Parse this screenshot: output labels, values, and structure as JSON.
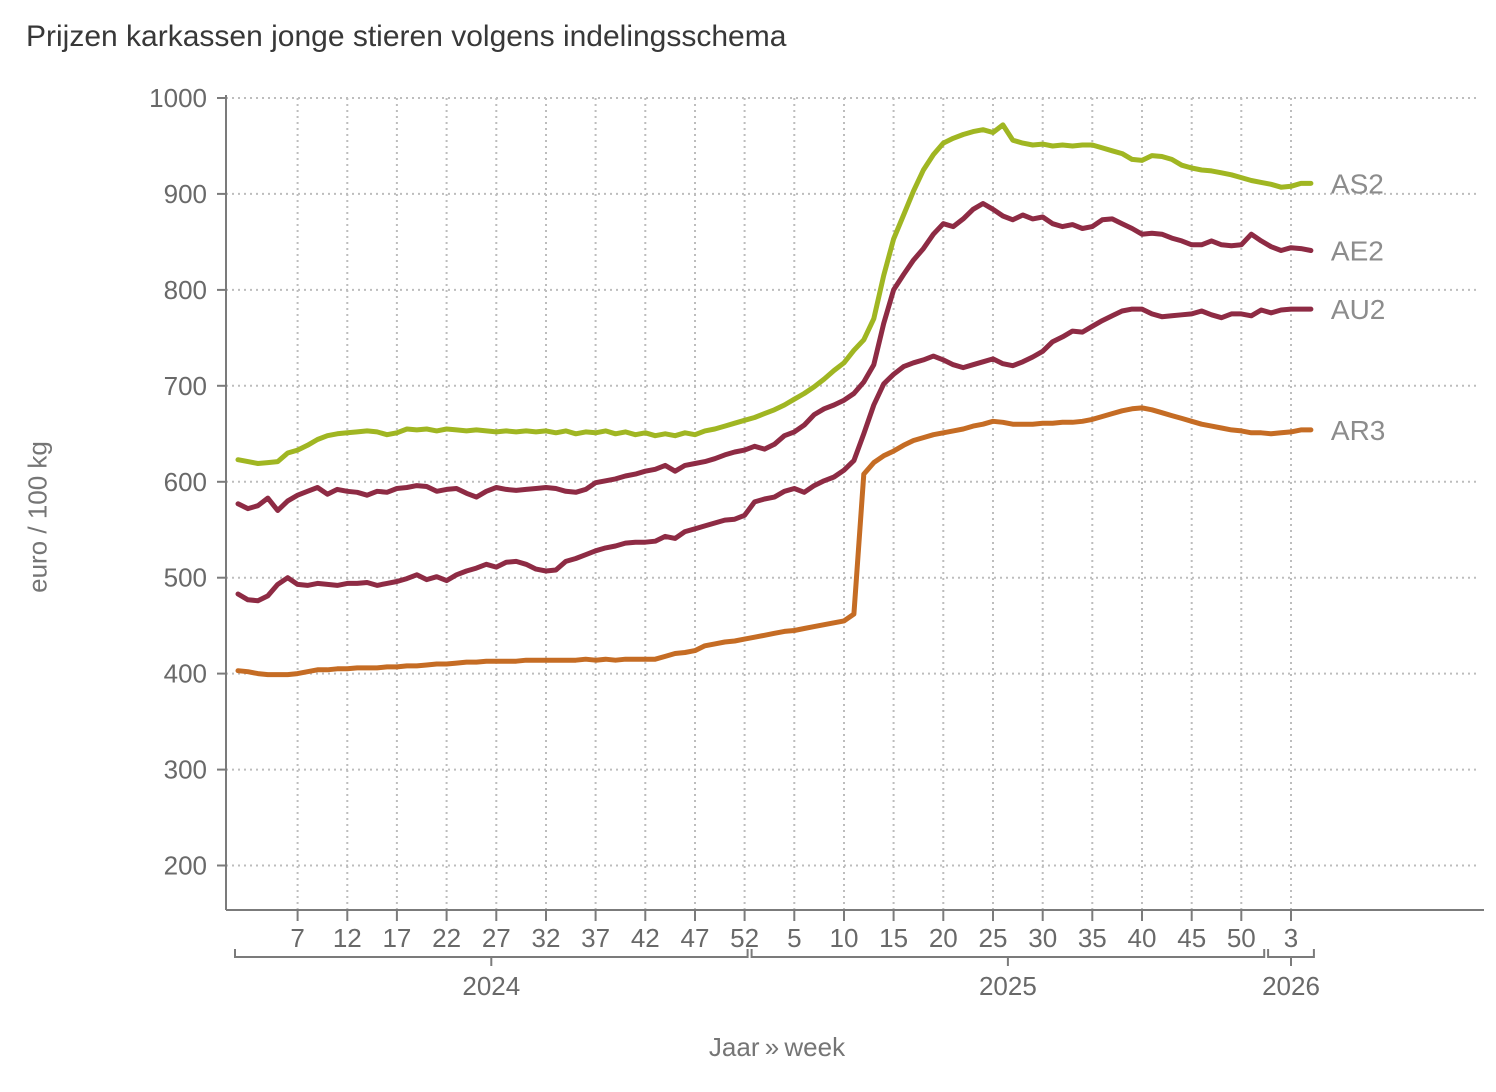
{
  "chart_data": {
    "type": "line",
    "title": "Prijzen karkassen jonge stieren volgens indelingsschema",
    "ylabel": "euro / 100 kg",
    "xlabel": "Jaar » week",
    "ylim": [
      150,
      1010
    ],
    "y_ticks": [
      1000,
      900,
      800,
      700,
      600,
      500,
      400,
      300,
      200
    ],
    "grid": true,
    "legend_position": "right-of-line-ends",
    "x": {
      "unit": "week",
      "years": [
        {
          "year": "2024",
          "weeks": 52,
          "tick_weeks": [
            7,
            12,
            17,
            22,
            27,
            32,
            37,
            42,
            47,
            52
          ]
        },
        {
          "year": "2025",
          "weeks": 52,
          "tick_weeks": [
            5,
            10,
            15,
            20,
            25,
            30,
            35,
            40,
            45,
            50
          ]
        },
        {
          "year": "2026",
          "weeks": 5,
          "tick_weeks": [
            3
          ]
        }
      ]
    },
    "series": [
      {
        "name": "AS2",
        "color": "#a0b622",
        "values": [
          623,
          621,
          619,
          620,
          621,
          630,
          633,
          638,
          644,
          648,
          650,
          651,
          652,
          653,
          652,
          649,
          651,
          655,
          654,
          655,
          653,
          655,
          654,
          653,
          654,
          653,
          652,
          653,
          652,
          653,
          652,
          653,
          651,
          653,
          650,
          652,
          651,
          653,
          650,
          652,
          649,
          651,
          648,
          650,
          648,
          651,
          649,
          653,
          655,
          658,
          661,
          664,
          667,
          671,
          675,
          680,
          686,
          692,
          699,
          707,
          716,
          724,
          737,
          748,
          770,
          815,
          853,
          878,
          903,
          925,
          941,
          953,
          958,
          962,
          965,
          967,
          964,
          972,
          956,
          953,
          951,
          952,
          950,
          951,
          950,
          951,
          951,
          948,
          945,
          942,
          936,
          935,
          940,
          939,
          936,
          930,
          927,
          925,
          924,
          922,
          920,
          917,
          914,
          912,
          910,
          907,
          908,
          911,
          911
        ]
      },
      {
        "name": "AE2",
        "color": "#8e2b44",
        "values": [
          577,
          572,
          575,
          583,
          570,
          580,
          586,
          590,
          594,
          587,
          592,
          590,
          589,
          586,
          590,
          589,
          593,
          594,
          596,
          595,
          590,
          592,
          593,
          588,
          584,
          590,
          594,
          592,
          591,
          592,
          593,
          594,
          593,
          590,
          589,
          592,
          599,
          601,
          603,
          606,
          608,
          611,
          613,
          617,
          611,
          617,
          619,
          621,
          624,
          628,
          631,
          633,
          637,
          634,
          639,
          648,
          652,
          659,
          670,
          676,
          680,
          685,
          692,
          704,
          722,
          765,
          800,
          816,
          831,
          843,
          858,
          869,
          866,
          874,
          884,
          890,
          884,
          877,
          873,
          878,
          874,
          876,
          869,
          866,
          868,
          864,
          866,
          873,
          874,
          869,
          864,
          858,
          859,
          858,
          854,
          851,
          847,
          847,
          851,
          847,
          846,
          847,
          858,
          851,
          845,
          841,
          844,
          843,
          841
        ]
      },
      {
        "name": "AU2",
        "color": "#8e2b44",
        "values": [
          483,
          477,
          476,
          481,
          493,
          500,
          493,
          492,
          494,
          493,
          492,
          494,
          494,
          495,
          492,
          494,
          496,
          499,
          503,
          498,
          501,
          497,
          503,
          507,
          510,
          514,
          511,
          516,
          517,
          514,
          509,
          507,
          508,
          517,
          520,
          524,
          528,
          531,
          533,
          536,
          537,
          537,
          538,
          543,
          541,
          548,
          551,
          554,
          557,
          560,
          561,
          565,
          579,
          582,
          584,
          590,
          593,
          589,
          596,
          601,
          605,
          612,
          622,
          650,
          680,
          702,
          712,
          720,
          724,
          727,
          731,
          727,
          722,
          719,
          722,
          725,
          728,
          723,
          721,
          725,
          730,
          736,
          746,
          751,
          757,
          756,
          762,
          768,
          773,
          778,
          780,
          780,
          775,
          772,
          773,
          774,
          775,
          778,
          774,
          771,
          775,
          775,
          773,
          779,
          776,
          779,
          780,
          780,
          780
        ]
      },
      {
        "name": "AR3",
        "color": "#c56c24",
        "values": [
          403,
          402,
          400,
          399,
          399,
          399,
          400,
          402,
          404,
          404,
          405,
          405,
          406,
          406,
          406,
          407,
          407,
          408,
          408,
          409,
          410,
          410,
          411,
          412,
          412,
          413,
          413,
          413,
          413,
          414,
          414,
          414,
          414,
          414,
          414,
          415,
          414,
          415,
          414,
          415,
          415,
          415,
          415,
          418,
          421,
          422,
          424,
          429,
          431,
          433,
          434,
          436,
          438,
          440,
          442,
          444,
          445,
          447,
          449,
          451,
          453,
          455,
          462,
          608,
          620,
          627,
          632,
          638,
          643,
          646,
          649,
          651,
          653,
          655,
          658,
          660,
          663,
          662,
          660,
          660,
          660,
          661,
          661,
          662,
          662,
          663,
          665,
          668,
          671,
          674,
          676,
          677,
          675,
          672,
          669,
          666,
          663,
          660,
          658,
          656,
          654,
          653,
          651,
          651,
          650,
          651,
          652,
          654,
          654
        ]
      }
    ]
  }
}
